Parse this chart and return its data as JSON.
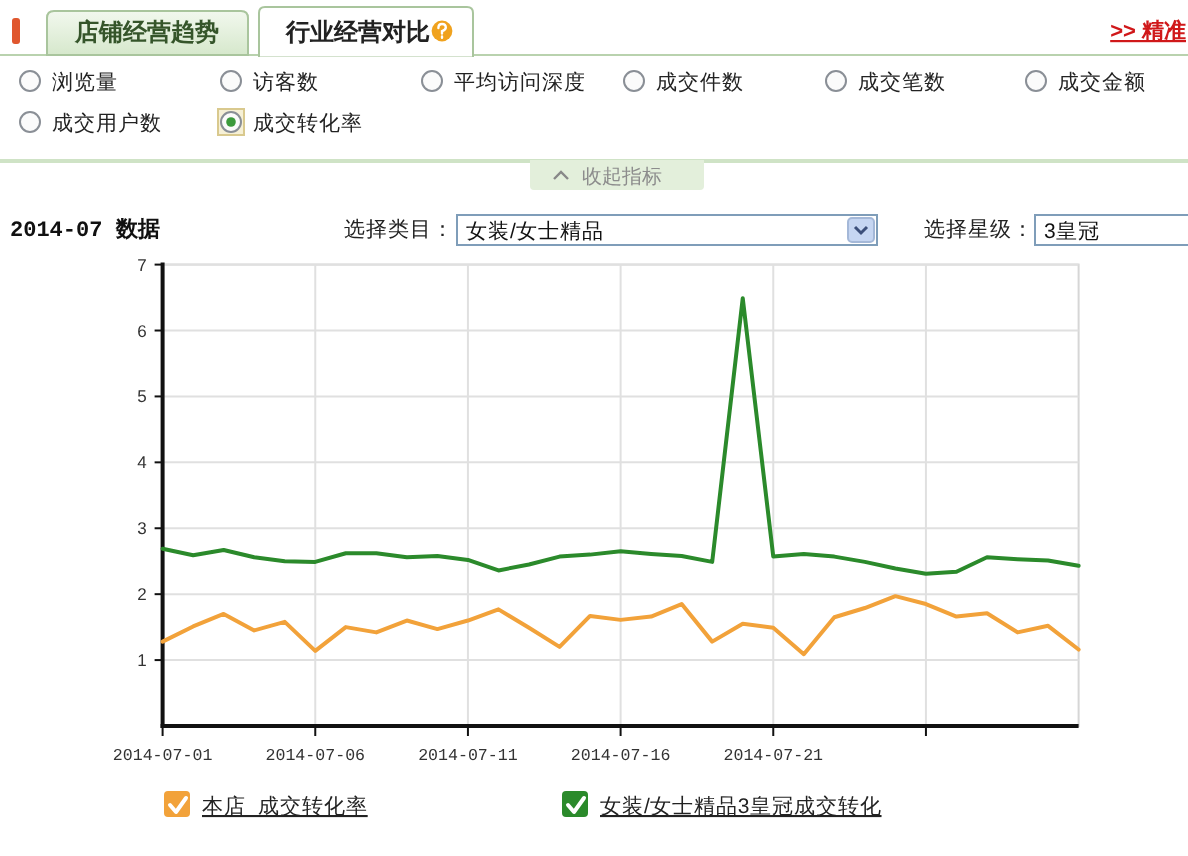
{
  "chart_data": {
    "type": "line",
    "title": "2014-07 数据",
    "annotations": [
      "店铺经营趋势",
      "行业经营对比",
      ">> 精准",
      "浏览量",
      "访客数",
      "平均访问深度",
      "成交件数",
      "成交笔数",
      "成交金额",
      "成交用户数",
      "成交转化率",
      "收起指标",
      "选择类目：",
      "女装/女士精品",
      "选择星级：",
      "3皇冠"
    ],
    "x": [
      "2014-07-01",
      "2014-07-02",
      "2014-07-03",
      "2014-07-04",
      "2014-07-05",
      "2014-07-06",
      "2014-07-07",
      "2014-07-08",
      "2014-07-09",
      "2014-07-10",
      "2014-07-11",
      "2014-07-12",
      "2014-07-13",
      "2014-07-14",
      "2014-07-15",
      "2014-07-16",
      "2014-07-17",
      "2014-07-18",
      "2014-07-19",
      "2014-07-20",
      "2014-07-21",
      "2014-07-22",
      "2014-07-23",
      "2014-07-24",
      "2014-07-25",
      "2014-07-26",
      "2014-07-27",
      "2014-07-28",
      "2014-07-29",
      "2014-07-30",
      "2014-07-31"
    ],
    "xlim": [
      "2014-07-01",
      "2014-07-31"
    ],
    "xticks": [
      "2014-07-01",
      "2014-07-06",
      "2014-07-11",
      "2014-07-16",
      "2014-07-21",
      {
        "value": "2014-07-26",
        "label": null
      }
    ],
    "ylim": [
      0,
      7
    ],
    "yticks": [
      1,
      2,
      3,
      4,
      5,
      6,
      7
    ],
    "grid": true,
    "legend": "bottom",
    "series": [
      {
        "name": "本店  成交转化率",
        "color": "#f2a23a",
        "values": [
          1.28,
          1.51,
          1.7,
          1.45,
          1.58,
          1.14,
          1.5,
          1.42,
          1.6,
          1.47,
          1.6,
          1.77,
          1.49,
          1.2,
          1.67,
          1.61,
          1.66,
          1.85,
          1.28,
          1.55,
          1.49,
          1.09,
          1.65,
          1.79,
          1.97,
          1.85,
          1.66,
          1.71,
          1.42,
          1.52,
          1.16
        ]
      },
      {
        "name": "女装/女士精品3皇冠成交转化",
        "color": "#2b8a2b",
        "values": [
          2.69,
          2.59,
          2.67,
          2.56,
          2.5,
          2.49,
          2.62,
          2.62,
          2.56,
          2.58,
          2.52,
          2.36,
          2.45,
          2.57,
          2.6,
          2.65,
          2.61,
          2.58,
          2.49,
          6.49,
          2.57,
          2.61,
          2.57,
          2.49,
          2.39,
          2.31,
          2.34,
          2.56,
          2.53,
          2.51,
          2.43
        ]
      }
    ]
  }
}
